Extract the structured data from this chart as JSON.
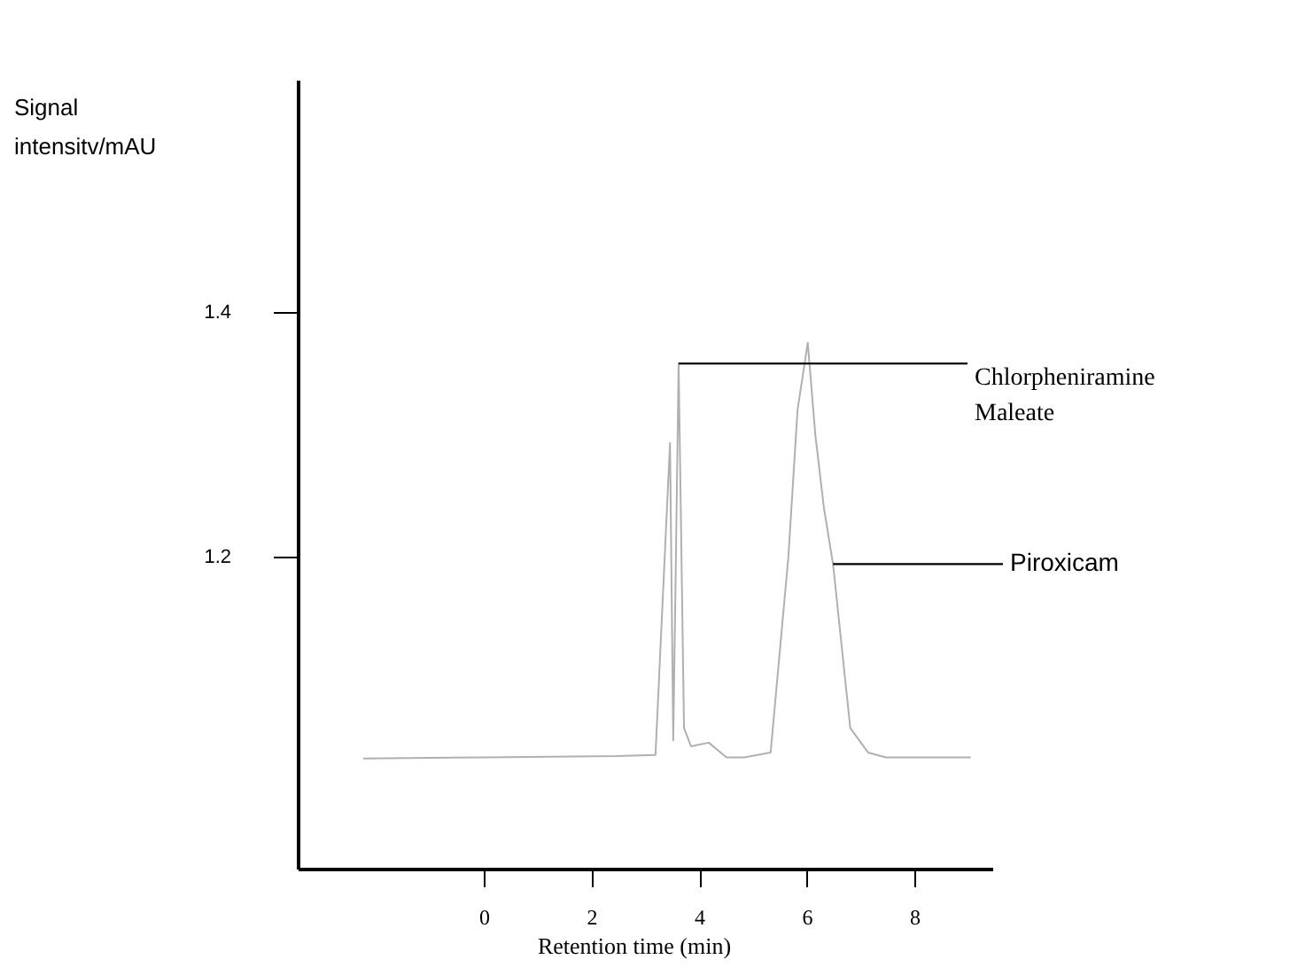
{
  "chart_data": {
    "type": "line",
    "xlabel": "Retention time (min)",
    "ylabel": "Signal intensitv/mAU",
    "x": [
      -2.24,
      0,
      2.47,
      3.19,
      3.46,
      3.52,
      3.57,
      3.62,
      3.72,
      3.85,
      4.18,
      4.51,
      4.84,
      5.33,
      5.66,
      5.83,
      6.02,
      6.16,
      6.32,
      6.49,
      6.81,
      7.14,
      7.47,
      8.13,
      9.05
    ],
    "series": [
      {
        "color": "#b0b0b0",
        "values": [
          1.035,
          1.036,
          1.037,
          1.038,
          1.293,
          1.05,
          1.2,
          1.358,
          1.06,
          1.045,
          1.048,
          1.036,
          1.036,
          1.04,
          1.2,
          1.32,
          1.375,
          1.3,
          1.24,
          1.194,
          1.06,
          1.04,
          1.036,
          1.036,
          1.036
        ]
      }
    ],
    "xlim": [
      -3.46,
      9.45
    ],
    "xticks": [
      0,
      2,
      4,
      6,
      8
    ],
    "ylim": [
      0.945,
      1.59
    ],
    "yticks": [
      1.2,
      1.4
    ],
    "grid": false,
    "marker": "none",
    "line_style": "solid",
    "annotations": [
      {
        "text": "Chlorpheniramine Maleate",
        "x": 3.62,
        "y": 1.358
      },
      {
        "text": "Piroxicam",
        "x": 6.49,
        "y": 1.194
      }
    ]
  }
}
